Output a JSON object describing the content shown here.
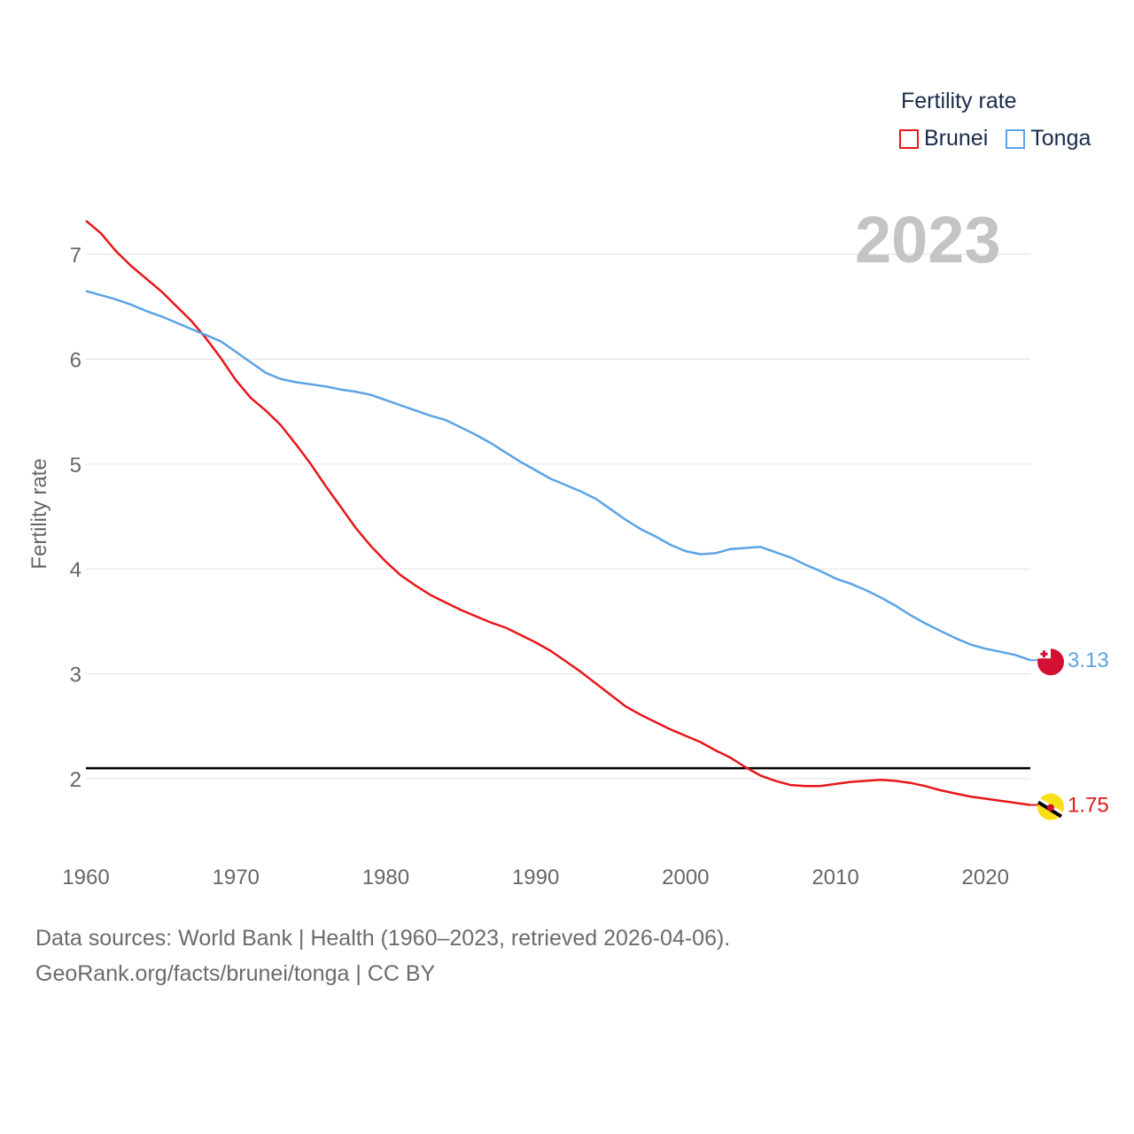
{
  "chart_data": {
    "type": "line",
    "ylabel": "Fertility rate",
    "xlabel": "",
    "xlim": [
      1960,
      2023
    ],
    "ylim": [
      1.5,
      7.5
    ],
    "x_ticks": [
      1960,
      1970,
      1980,
      1990,
      2000,
      2010,
      2020
    ],
    "y_ticks": [
      2,
      3,
      4,
      5,
      6,
      7
    ],
    "year_label": "2023",
    "legend_title": "Fertility rate",
    "reference_line": 2.1,
    "x": [
      1960,
      1961,
      1962,
      1963,
      1964,
      1965,
      1966,
      1967,
      1968,
      1969,
      1970,
      1971,
      1972,
      1973,
      1974,
      1975,
      1976,
      1977,
      1978,
      1979,
      1980,
      1981,
      1982,
      1983,
      1984,
      1985,
      1986,
      1987,
      1988,
      1989,
      1990,
      1991,
      1992,
      1993,
      1994,
      1995,
      1996,
      1997,
      1998,
      1999,
      2000,
      2001,
      2002,
      2003,
      2004,
      2005,
      2006,
      2007,
      2008,
      2009,
      2010,
      2011,
      2012,
      2013,
      2014,
      2015,
      2016,
      2017,
      2018,
      2019,
      2020,
      2021,
      2022,
      2023
    ],
    "series": [
      {
        "name": "Brunei",
        "color": "#e8161a",
        "end_label": "1.75",
        "values": [
          7.32,
          7.2,
          7.03,
          6.89,
          6.77,
          6.65,
          6.51,
          6.37,
          6.2,
          6.01,
          5.8,
          5.63,
          5.51,
          5.37,
          5.19,
          5.0,
          4.79,
          4.59,
          4.39,
          4.22,
          4.07,
          3.94,
          3.84,
          3.75,
          3.68,
          3.61,
          3.55,
          3.49,
          3.44,
          3.37,
          3.3,
          3.22,
          3.12,
          3.02,
          2.91,
          2.8,
          2.69,
          2.61,
          2.54,
          2.47,
          2.41,
          2.35,
          2.27,
          2.2,
          2.11,
          2.03,
          1.98,
          1.94,
          1.93,
          1.93,
          1.95,
          1.97,
          1.98,
          1.99,
          1.98,
          1.96,
          1.93,
          1.89,
          1.86,
          1.83,
          1.81,
          1.79,
          1.77,
          1.75
        ]
      },
      {
        "name": "Tonga",
        "color": "#5ba3e6",
        "end_label": "3.13",
        "values": [
          6.65,
          6.61,
          6.57,
          6.52,
          6.46,
          6.41,
          6.35,
          6.29,
          6.23,
          6.17,
          6.07,
          5.97,
          5.87,
          5.81,
          5.78,
          5.76,
          5.74,
          5.71,
          5.69,
          5.66,
          5.61,
          5.56,
          5.51,
          5.46,
          5.42,
          5.35,
          5.28,
          5.2,
          5.11,
          5.02,
          4.94,
          4.86,
          4.8,
          4.74,
          4.67,
          4.57,
          4.47,
          4.38,
          4.31,
          4.23,
          4.17,
          4.14,
          4.15,
          4.19,
          4.2,
          4.21,
          4.16,
          4.11,
          4.04,
          3.98,
          3.91,
          3.86,
          3.8,
          3.73,
          3.65,
          3.56,
          3.48,
          3.41,
          3.34,
          3.28,
          3.24,
          3.21,
          3.18,
          3.13
        ]
      }
    ]
  },
  "footer": {
    "line1": "Data sources: World Bank | Health (1960–2023, retrieved 2026-04-06).",
    "line2": "GeoRank.org/facts/brunei/tonga | CC BY"
  },
  "flags": {
    "brunei": "brunei-flag-icon",
    "tonga": "tonga-flag-icon"
  }
}
